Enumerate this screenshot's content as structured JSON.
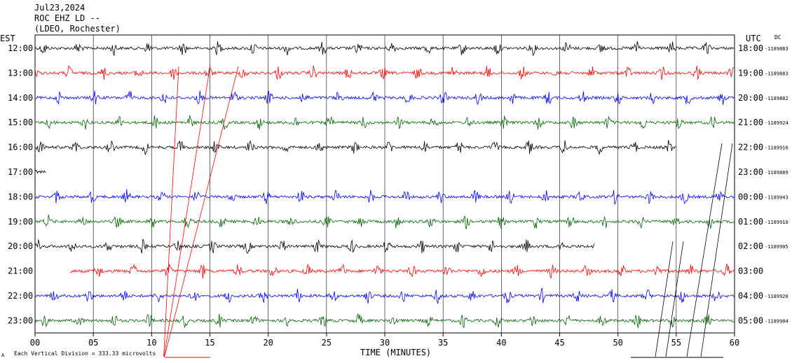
{
  "header": {
    "date": "Jul23,2024",
    "station": "ROC EHZ LD --",
    "network": "(LDEO, Rochester)"
  },
  "left_axis_title": "EST",
  "right_axis_title": "UTC",
  "dc_label": "DC",
  "footer": {
    "scale_note": "Each Vertical Division =  333.33 microvolts",
    "corner_mark": "A"
  },
  "colors": {
    "black": "#000000",
    "red": "#ff0000",
    "blue": "#0000ff",
    "green": "#006600"
  },
  "chart_data": {
    "type": "line",
    "title": "",
    "xlabel": "TIME (MINUTES)",
    "xlim": [
      0,
      60
    ],
    "x_ticks": [
      "00",
      "05",
      "10",
      "15",
      "20",
      "25",
      "30",
      "35",
      "40",
      "45",
      "50",
      "55",
      "60"
    ],
    "traces": [
      {
        "est": "12:00",
        "utc": "18:00",
        "dc": "-1189883",
        "color": "black",
        "start": 0,
        "end": 60
      },
      {
        "est": "13:00",
        "utc": "19:00",
        "dc": "-1189883",
        "color": "red",
        "start": 0,
        "end": 60
      },
      {
        "est": "14:00",
        "utc": "20:00",
        "dc": "-1189882",
        "color": "blue",
        "start": 0,
        "end": 60
      },
      {
        "est": "15:00",
        "utc": "21:00",
        "dc": "-1189924",
        "color": "green",
        "start": 0,
        "end": 60
      },
      {
        "est": "16:00",
        "utc": "22:00",
        "dc": "-1189916",
        "color": "black",
        "start": 0,
        "end": 55
      },
      {
        "est": "17:00",
        "utc": "23:00",
        "dc": "-1189889",
        "color": "black",
        "start": 0,
        "end": 1
      },
      {
        "est": "18:00",
        "utc": "00:00",
        "dc": "-1189943",
        "color": "blue",
        "start": 0,
        "end": 60
      },
      {
        "est": "19:00",
        "utc": "01:00",
        "dc": "-1189910",
        "color": "green",
        "start": 0,
        "end": 60
      },
      {
        "est": "20:00",
        "utc": "02:00",
        "dc": "-1189905",
        "color": "black",
        "start": 0,
        "end": 48
      },
      {
        "est": "21:00",
        "utc": "03:00",
        "dc": "",
        "color": "red",
        "start": 3,
        "end": 60
      },
      {
        "est": "22:00",
        "utc": "04:00",
        "dc": "-1189920",
        "color": "blue",
        "start": 0,
        "end": 60
      },
      {
        "est": "23:00",
        "utc": "05:00",
        "dc": "-1189904",
        "color": "green",
        "start": 0,
        "end": 60
      }
    ]
  }
}
